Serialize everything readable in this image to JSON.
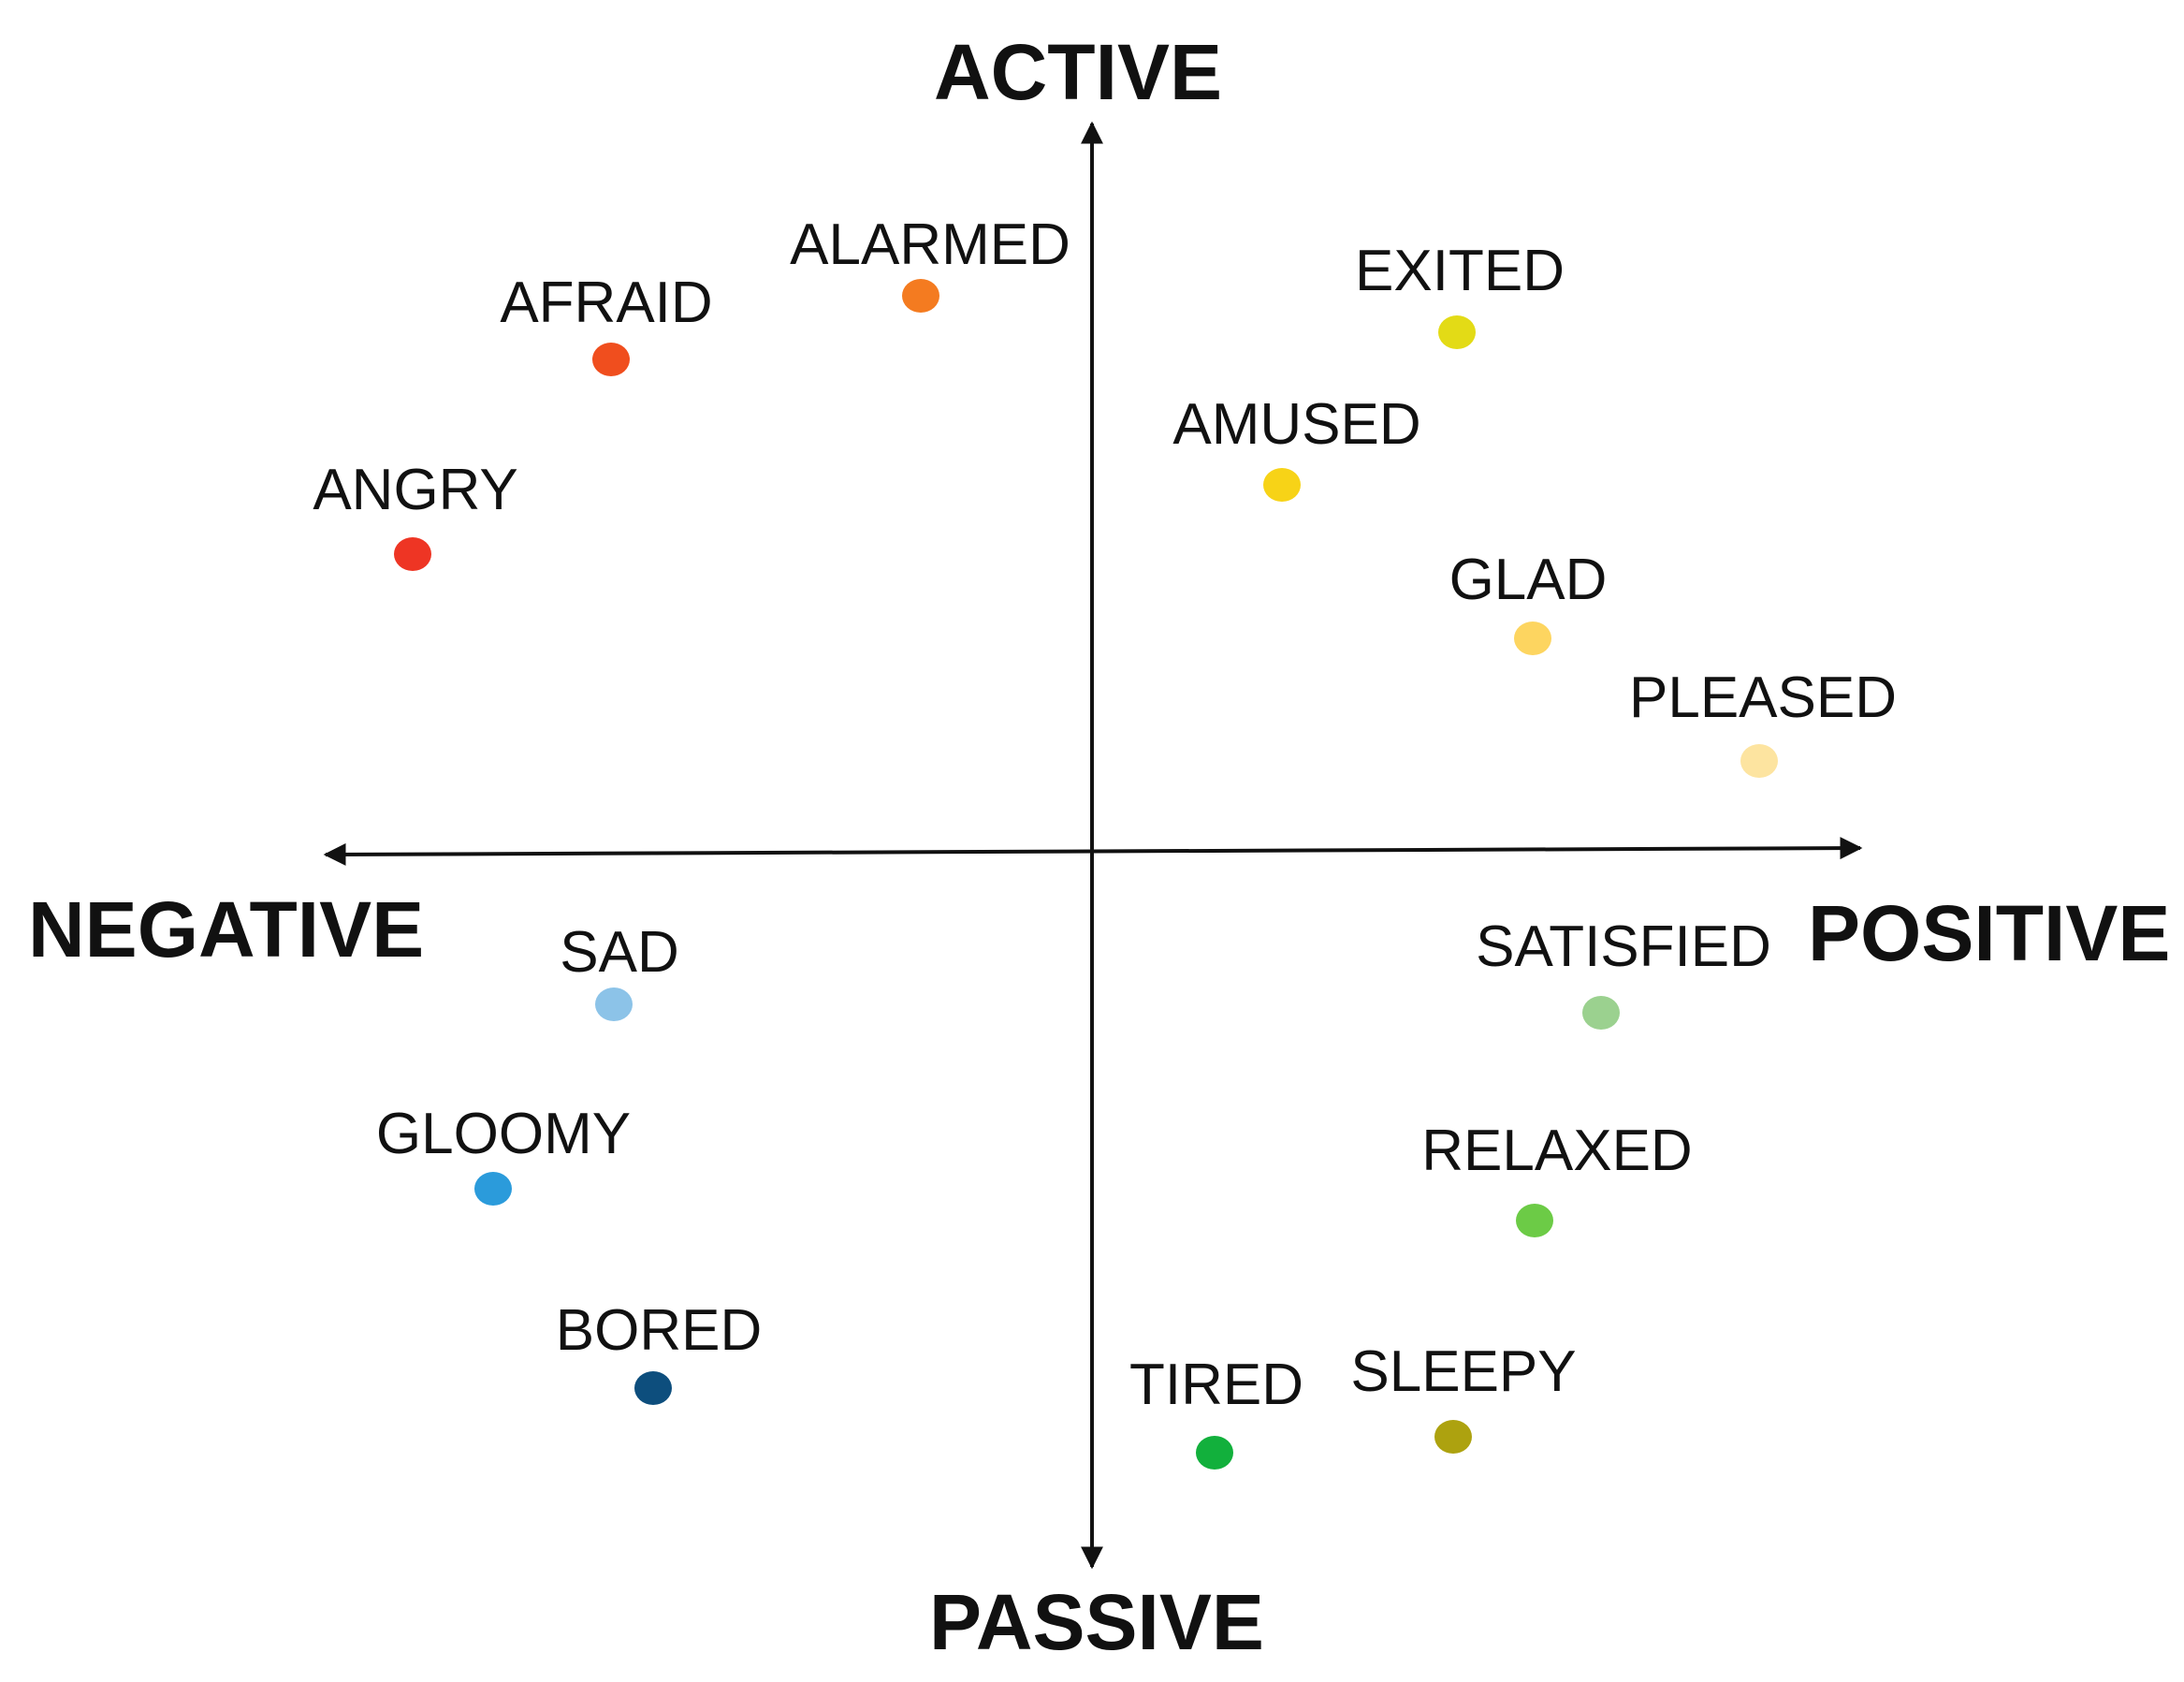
{
  "axes": {
    "top": "ACTIVE",
    "bottom": "PASSIVE",
    "left": "NEGATIVE",
    "right": "POSITIVE"
  },
  "emotions": [
    {
      "id": "alarmed",
      "label": "ALARMED",
      "color": "#F47B20"
    },
    {
      "id": "afraid",
      "label": "AFRAID",
      "color": "#F04E1E"
    },
    {
      "id": "angry",
      "label": "ANGRY",
      "color": "#EE3524"
    },
    {
      "id": "exited",
      "label": "EXITED",
      "color": "#E3DB16"
    },
    {
      "id": "amused",
      "label": "AMUSED",
      "color": "#F7D317"
    },
    {
      "id": "glad",
      "label": "GLAD",
      "color": "#FDD560"
    },
    {
      "id": "pleased",
      "label": "PLEASED",
      "color": "#FDE4A0"
    },
    {
      "id": "sad",
      "label": "SAD",
      "color": "#8CC3E8"
    },
    {
      "id": "gloomy",
      "label": "GLOOMY",
      "color": "#2B9BDB"
    },
    {
      "id": "bored",
      "label": "BORED",
      "color": "#0D4E7D"
    },
    {
      "id": "satisfied",
      "label": "SATISFIED",
      "color": "#9BD18F"
    },
    {
      "id": "relaxed",
      "label": "RELAXED",
      "color": "#6CCB46"
    },
    {
      "id": "tired",
      "label": "TIRED",
      "color": "#12B03C"
    },
    {
      "id": "sleepy",
      "label": "SLEEPY",
      "color": "#ADA20F"
    }
  ]
}
